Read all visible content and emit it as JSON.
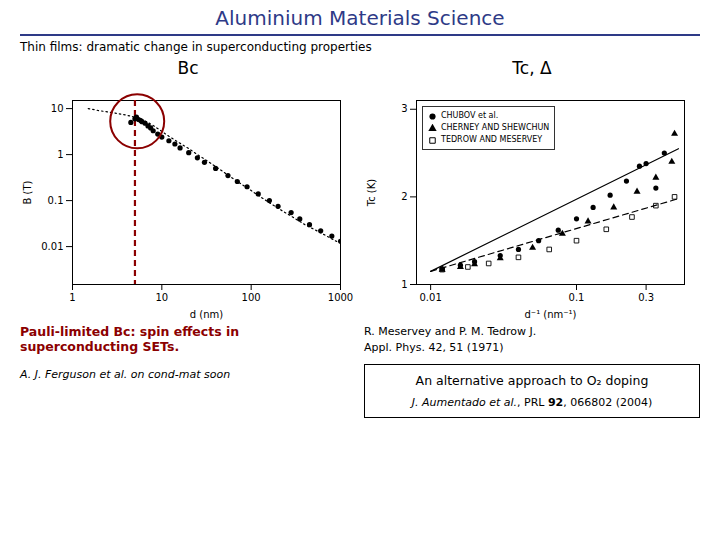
{
  "title": "Aluminium Materials Science",
  "title_color": "#2e3a87",
  "subtitle": "Thin films: dramatic change in superconducting properties",
  "chart_data": [
    {
      "type": "scatter",
      "title": "Bc",
      "xlabel": "d (nm)",
      "ylabel": "B (T)",
      "log": true,
      "xlim": [
        1,
        1000
      ],
      "ylim": [
        0.0015,
        15
      ],
      "xticks": [
        1,
        10,
        100,
        1000
      ],
      "yticks": [
        0.01,
        0.1,
        1,
        10
      ],
      "series": [
        {
          "type": "scatter",
          "color": "black",
          "marker": "circle",
          "x": [
            4.5,
            5.0,
            5.2,
            5.5,
            5.8,
            6.0,
            6.5,
            7.0,
            7.5,
            8.0,
            9.0,
            10,
            12,
            14,
            16,
            20,
            25,
            30,
            40,
            55,
            70,
            90,
            120,
            160,
            200,
            280,
            350,
            450,
            600,
            800,
            1000
          ],
          "values": [
            5.0,
            6.0,
            6.5,
            5.8,
            5.5,
            5.2,
            4.8,
            4.2,
            3.8,
            3.3,
            2.8,
            2.4,
            2.0,
            1.7,
            1.4,
            1.1,
            0.85,
            0.68,
            0.5,
            0.35,
            0.26,
            0.2,
            0.14,
            0.1,
            0.075,
            0.055,
            0.04,
            0.03,
            0.022,
            0.017,
            0.013
          ]
        },
        {
          "type": "line",
          "color": "black",
          "line_style": "dotted",
          "x": [
            1.5,
            2,
            3,
            4,
            5,
            6,
            7,
            8,
            10,
            12,
            15,
            20,
            25,
            30,
            40,
            55,
            70,
            90,
            120,
            160,
            200,
            280,
            400,
            600,
            900
          ],
          "values": [
            10,
            9.0,
            8.0,
            7.2,
            6.5,
            5.8,
            5.0,
            4.3,
            3.2,
            2.5,
            1.9,
            1.35,
            1.0,
            0.8,
            0.55,
            0.36,
            0.26,
            0.19,
            0.13,
            0.09,
            0.068,
            0.046,
            0.03,
            0.02,
            0.013
          ]
        }
      ],
      "vlines": [
        {
          "x": 5.0,
          "color": "#8b0000",
          "line_style": "dashed"
        }
      ],
      "highlight": {
        "x": 5.3,
        "y": 5.3,
        "color": "#8b0000"
      }
    },
    {
      "type": "scatter",
      "title": "Tc, Δ",
      "xlabel": "d⁻¹ (nm⁻¹)",
      "ylabel": "Tc (K)",
      "log": "x",
      "xlim": [
        0.008,
        0.55
      ],
      "ylim": [
        1.0,
        3.1
      ],
      "xticks": [
        0.01,
        0.1,
        0.3
      ],
      "yticks": [
        1,
        2,
        3
      ],
      "legend": "upper left",
      "series": [
        {
          "name": "CHUBOV et al.",
          "type": "scatter",
          "color": "black",
          "marker": "circle",
          "x": [
            0.012,
            0.016,
            0.02,
            0.03,
            0.04,
            0.055,
            0.075,
            0.1,
            0.13,
            0.17,
            0.22,
            0.3,
            0.4
          ],
          "values": [
            1.18,
            1.22,
            1.26,
            1.33,
            1.4,
            1.5,
            1.62,
            1.75,
            1.88,
            2.02,
            2.18,
            2.38,
            2.5
          ]
        },
        {
          "name": "CHERNEY AND SHEWCHUN",
          "type": "scatter",
          "color": "black",
          "marker": "triangle",
          "x": [
            0.012,
            0.016,
            0.02,
            0.03,
            0.05,
            0.08,
            0.12,
            0.18,
            0.26,
            0.35,
            0.45
          ],
          "values": [
            1.17,
            1.2,
            1.23,
            1.3,
            1.42,
            1.58,
            1.72,
            1.88,
            2.06,
            2.22,
            2.4
          ]
        },
        {
          "name": "TEDROW AND MESERVEY",
          "type": "scatter",
          "color": "black",
          "marker": "square_open",
          "x": [
            0.012,
            0.018,
            0.025,
            0.04,
            0.065,
            0.1,
            0.16,
            0.24,
            0.35,
            0.47
          ],
          "values": [
            1.17,
            1.2,
            1.24,
            1.31,
            1.4,
            1.5,
            1.63,
            1.77,
            1.9,
            2.0
          ]
        },
        {
          "type": "scatter",
          "color": "black",
          "marker": "circle",
          "x": [
            0.27,
            0.35
          ],
          "values": [
            2.35,
            2.1
          ]
        },
        {
          "type": "scatter",
          "color": "black",
          "marker": "triangle",
          "x": [
            0.47
          ],
          "values": [
            2.72
          ]
        },
        {
          "type": "line",
          "color": "black",
          "line_style": "solid",
          "x": [
            0.01,
            0.5
          ],
          "values": [
            1.15,
            2.55
          ]
        },
        {
          "type": "line",
          "color": "black",
          "line_style": "dashed",
          "x": [
            0.01,
            0.5
          ],
          "values": [
            1.15,
            1.98
          ]
        }
      ]
    }
  ],
  "reference": [
    "R. Meservey and P. M. Tedrow J.",
    "Appl. Phys. 42, 51 (1971)"
  ],
  "note": {
    "text": "Pauli-limited Bc: spin effects in\nsuperconducting SETs.",
    "color": "#8b0000",
    "source": "A. J. Ferguson et al. on cond-mat soon"
  },
  "box": {
    "text": "An alternative approach to O₂ doping",
    "citation": [
      "J. Aumentado et al.",
      ", PRL ",
      "92",
      ", 066802 (2004)"
    ]
  }
}
